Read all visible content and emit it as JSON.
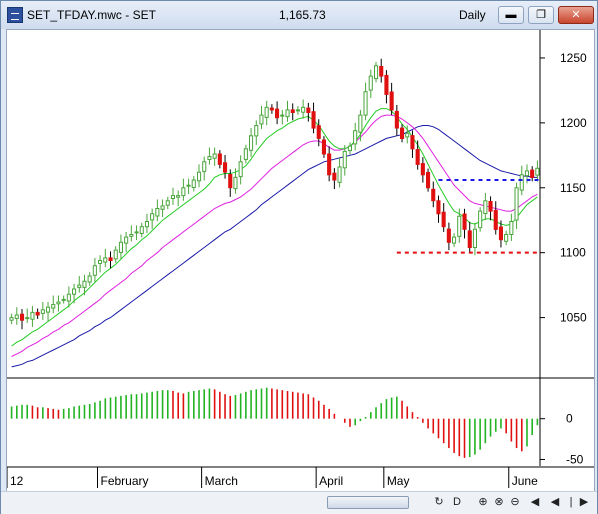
{
  "window": {
    "title": "SET_TFDAY.mwc - SET",
    "last_price": "1,165.73",
    "interval": "Daily",
    "minimize_glyph": "▬",
    "restore_glyph": "❐",
    "close_glyph": "✕"
  },
  "colors": {
    "up_candle": "#4aa63c",
    "down_candle": "#e01010",
    "ma_fast": "#22cc22",
    "ma_mid": "#e020e0",
    "ma_slow": "#1a1aa8",
    "hist_up": "#22b422",
    "hist_down": "#e01010",
    "support_line": "#e01010",
    "resistance_line": "#1a1ae6"
  },
  "chart_data": [
    {
      "type": "candlestick",
      "y_ticks": [
        "1250",
        "1200",
        "1150",
        "1100",
        "1050"
      ],
      "y_tick_values": [
        1250,
        1200,
        1150,
        1100,
        1050
      ],
      "ylim": [
        1005,
        1270
      ],
      "x_labels": [
        "12",
        "February",
        "March",
        "April",
        "May",
        "June"
      ],
      "x_label_index": [
        0,
        17,
        37,
        59,
        72,
        96
      ],
      "n_bars": 102,
      "ohlc_close_path": [
        1050,
        1052,
        1048,
        1050,
        1054,
        1052,
        1056,
        1058,
        1060,
        1062,
        1064,
        1068,
        1072,
        1075,
        1078,
        1082,
        1090,
        1094,
        1096,
        1094,
        1102,
        1108,
        1112,
        1114,
        1116,
        1120,
        1124,
        1130,
        1134,
        1136,
        1140,
        1144,
        1144,
        1150,
        1152,
        1156,
        1162,
        1170,
        1174,
        1176,
        1168,
        1162,
        1150,
        1158,
        1170,
        1180,
        1190,
        1198,
        1206,
        1212,
        1210,
        1204,
        1206,
        1210,
        1208,
        1210,
        1212,
        1208,
        1196,
        1188,
        1176,
        1160,
        1156,
        1166,
        1178,
        1182,
        1194,
        1206,
        1224,
        1236,
        1244,
        1236,
        1222,
        1210,
        1196,
        1188,
        1192,
        1180,
        1168,
        1160,
        1150,
        1140,
        1130,
        1120,
        1108,
        1112,
        1128,
        1118,
        1104,
        1118,
        1132,
        1140,
        1132,
        1118,
        1110,
        1114,
        1124,
        1150,
        1160,
        1163,
        1158,
        1165
      ],
      "ma_fast": [
        1028,
        1031,
        1033,
        1036,
        1039,
        1041,
        1044,
        1047,
        1050,
        1053,
        1056,
        1059,
        1063,
        1066,
        1069,
        1073,
        1077,
        1081,
        1085,
        1088,
        1091,
        1095,
        1099,
        1103,
        1106,
        1110,
        1113,
        1117,
        1121,
        1125,
        1128,
        1131,
        1134,
        1137,
        1140,
        1143,
        1146,
        1149,
        1153,
        1158,
        1160,
        1161,
        1161,
        1162,
        1164,
        1167,
        1172,
        1178,
        1183,
        1188,
        1191,
        1194,
        1196,
        1199,
        1201,
        1203,
        1204,
        1205,
        1202,
        1198,
        1192,
        1186,
        1182,
        1180,
        1180,
        1182,
        1186,
        1191,
        1198,
        1204,
        1209,
        1211,
        1211,
        1209,
        1205,
        1199,
        1195,
        1189,
        1183,
        1176,
        1168,
        1160,
        1152,
        1145,
        1138,
        1132,
        1130,
        1127,
        1123,
        1122,
        1124,
        1126,
        1126,
        1124,
        1122,
        1121,
        1122,
        1127,
        1132,
        1137,
        1140,
        1143
      ],
      "ma_mid": [
        1020,
        1022,
        1024,
        1027,
        1029,
        1031,
        1034,
        1036,
        1039,
        1041,
        1044,
        1046,
        1049,
        1052,
        1055,
        1058,
        1061,
        1064,
        1068,
        1071,
        1074,
        1077,
        1080,
        1084,
        1087,
        1090,
        1094,
        1097,
        1100,
        1104,
        1107,
        1110,
        1113,
        1116,
        1119,
        1122,
        1125,
        1128,
        1131,
        1134,
        1136,
        1138,
        1139,
        1141,
        1143,
        1146,
        1149,
        1153,
        1157,
        1161,
        1165,
        1168,
        1171,
        1174,
        1177,
        1180,
        1183,
        1185,
        1186,
        1186,
        1184,
        1181,
        1179,
        1179,
        1180,
        1182,
        1185,
        1189,
        1193,
        1198,
        1202,
        1205,
        1206,
        1206,
        1205,
        1203,
        1200,
        1197,
        1193,
        1188,
        1182,
        1176,
        1170,
        1164,
        1158,
        1152,
        1148,
        1144,
        1140,
        1138,
        1137,
        1136,
        1135,
        1134,
        1133,
        1132,
        1132,
        1134,
        1137,
        1140,
        1143,
        1145
      ],
      "ma_slow": [
        1012,
        1013,
        1014,
        1016,
        1017,
        1019,
        1021,
        1023,
        1025,
        1027,
        1029,
        1031,
        1033,
        1036,
        1038,
        1040,
        1043,
        1045,
        1048,
        1050,
        1053,
        1056,
        1059,
        1062,
        1065,
        1068,
        1071,
        1074,
        1077,
        1080,
        1083,
        1086,
        1089,
        1092,
        1095,
        1098,
        1101,
        1104,
        1107,
        1110,
        1113,
        1116,
        1118,
        1121,
        1124,
        1127,
        1130,
        1133,
        1137,
        1140,
        1143,
        1146,
        1149,
        1152,
        1155,
        1158,
        1161,
        1164,
        1166,
        1168,
        1170,
        1171,
        1172,
        1173,
        1174,
        1175,
        1176,
        1178,
        1180,
        1182,
        1184,
        1186,
        1188,
        1189,
        1190,
        1191,
        1193,
        1195,
        1197,
        1198,
        1198,
        1197,
        1195,
        1192,
        1189,
        1186,
        1183,
        1180,
        1177,
        1174,
        1171,
        1169,
        1167,
        1165,
        1163,
        1162,
        1161,
        1160,
        1159,
        1159,
        1158,
        1158
      ],
      "horizontal_levels": [
        {
          "value": 1156,
          "color": "#1a1ae6",
          "from_index": 82
        },
        {
          "value": 1100,
          "color": "#e01010",
          "from_index": 74
        }
      ]
    },
    {
      "type": "bar",
      "y_ticks": [
        "0",
        "-50"
      ],
      "y_tick_values": [
        0,
        -50
      ],
      "ylim": [
        -58,
        45
      ],
      "values": [
        15,
        16,
        17,
        17,
        16,
        14,
        14,
        13,
        12,
        11,
        12,
        13,
        15,
        16,
        17,
        18,
        20,
        22,
        25,
        26,
        27,
        28,
        29,
        30,
        30,
        31,
        32,
        33,
        34,
        35,
        35,
        34,
        32,
        31,
        33,
        34,
        35,
        36,
        37,
        36,
        33,
        30,
        28,
        29,
        31,
        33,
        35,
        36,
        37,
        38,
        37,
        36,
        35,
        34,
        33,
        32,
        31,
        30,
        26,
        22,
        17,
        12,
        6,
        0,
        -5,
        -10,
        -8,
        -3,
        2,
        8,
        14,
        19,
        24,
        26,
        27,
        22,
        15,
        8,
        2,
        -5,
        -12,
        -18,
        -24,
        -30,
        -36,
        -42,
        -46,
        -48,
        -47,
        -44,
        -38,
        -30,
        -22,
        -16,
        -12,
        -18,
        -28,
        -36,
        -40,
        -34,
        -20,
        -8
      ],
      "colors_by_trend": true
    }
  ],
  "scrollbar": {
    "left_arrow": "◀",
    "right_arrow": "▶",
    "btn_cycle": "↻",
    "btn_d": "D",
    "btn_zoom_in": "⊕",
    "btn_zoom_out": "⊖",
    "btn_zoom_fit": "⊗",
    "btn_prev": "◀",
    "btn_play": "|",
    "btn_next": "▶"
  }
}
